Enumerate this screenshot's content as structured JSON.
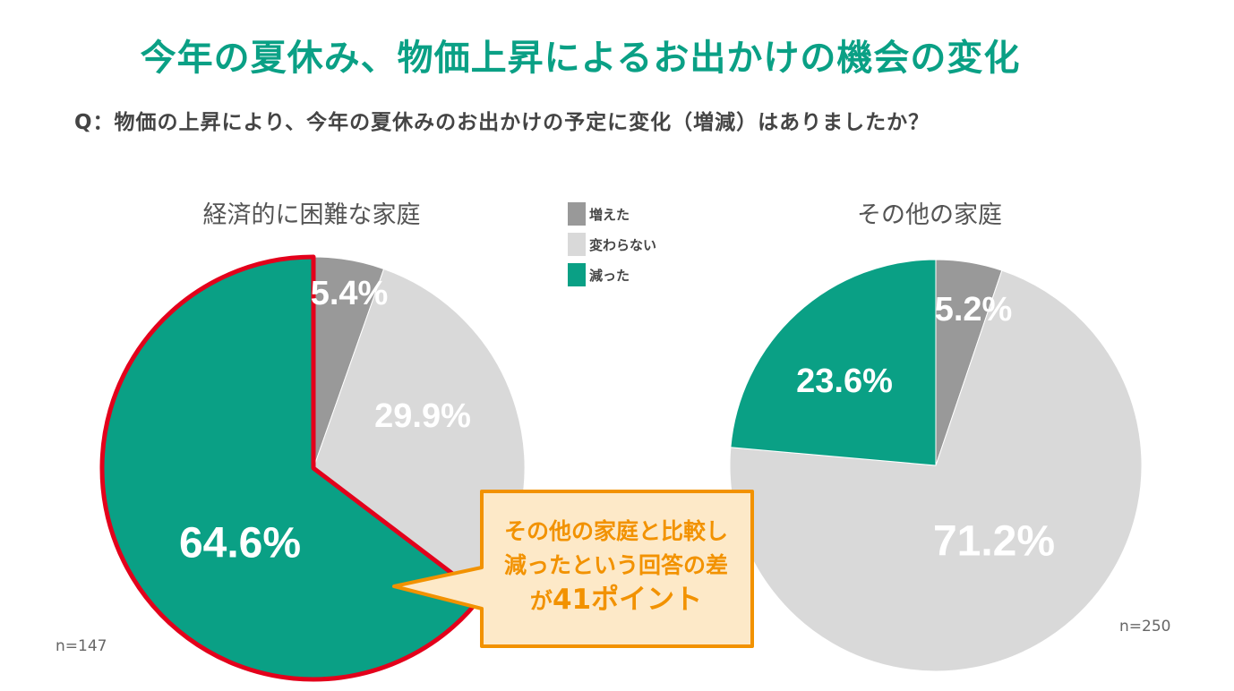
{
  "title": "今年の夏休み、物価上昇によるお出かけの機会の変化",
  "question": "Q：物価の上昇により、今年の夏休みのお出かけの予定に変化（増減）はありましたか？",
  "legend": [
    {
      "label": "増えた",
      "color": "#999999"
    },
    {
      "label": "変わらない",
      "color": "#d9d9d9"
    },
    {
      "label": "減った",
      "color": "#0aa085"
    }
  ],
  "callout": {
    "line1": "その他の家庭と比較し",
    "line2": "減ったという回答の差",
    "line3_prefix": "が",
    "line3_main": "41ポイント"
  },
  "chart_data": [
    {
      "type": "pie",
      "title": "経済的に困難な家庭",
      "n_label": "n=147",
      "slices": [
        {
          "label": "増えた",
          "value": 5.4,
          "display": "5.4%"
        },
        {
          "label": "変わらない",
          "value": 29.9,
          "display": "29.9%"
        },
        {
          "label": "減った",
          "value": 64.6,
          "display": "64.6%"
        }
      ],
      "highlight": "減った"
    },
    {
      "type": "pie",
      "title": "その他の家庭",
      "n_label": "n=250",
      "slices": [
        {
          "label": "増えた",
          "value": 5.2,
          "display": "5.2%"
        },
        {
          "label": "変わらない",
          "value": 71.2,
          "display": "71.2%"
        },
        {
          "label": "減った",
          "value": 23.6,
          "display": "23.6%"
        }
      ]
    }
  ]
}
